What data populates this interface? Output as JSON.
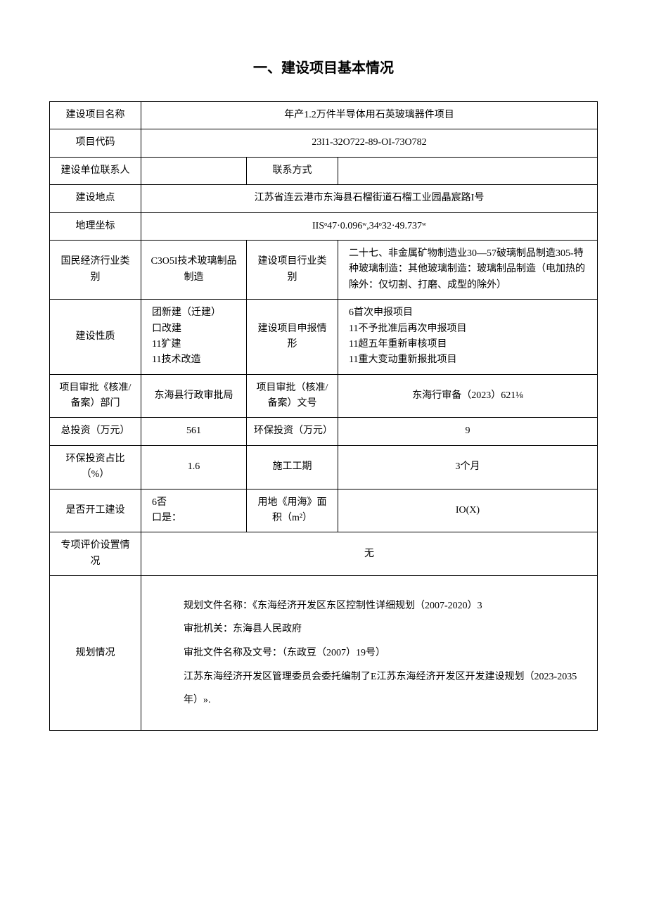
{
  "title": "一、建设项目基本情况",
  "rows": {
    "projectName": {
      "label": "建设项目名称",
      "value": "年产1.2万件半导体用石英玻璃器件项目"
    },
    "projectCode": {
      "label": "项目代码",
      "value": "23I1-32O722-89-OI-73O782"
    },
    "contactPerson": {
      "label": "建设单位联系人",
      "value": ""
    },
    "contactMethod": {
      "label": "联系方式",
      "value": ""
    },
    "address": {
      "label": "建设地点",
      "value": "江苏省连云港市东海县石榴街道石榴工业园晶宸路I号"
    },
    "coordinates": {
      "label": "地理坐标",
      "value": "IISᵒ47·0.096ʷ,34ᵒ32·49.737ʷ"
    },
    "industryCategory": {
      "label": "国民经济行业类别",
      "value": "C3O5I技术玻璃制品制造"
    },
    "projectIndustry": {
      "label": "建设项目行业类别",
      "value": "二十七、非金属矿物制造业30—57破璃制品制造305-特种玻璃制造：其他玻璃制造：玻璃制品制造（电加热的除外：仅切割、打磨、成型的除外）"
    },
    "constructionNature": {
      "label": "建设性质",
      "value": "团新建（迁建）\n口改建\n11犷建\n11技术改造"
    },
    "applicationStatus": {
      "label": "建设项目申报情形",
      "value": "6首次申报项目\n11不予批准后再次申报项目\n11超五年重新审核项目\n11重大变动重新报批项目"
    },
    "approvalDept": {
      "label": "项目审批《核准/备案）部门",
      "value": "东海县行政审批局"
    },
    "approvalNo": {
      "label": "项目审批（核准/备案）文号",
      "value": "东海行审备（2023）621⅛"
    },
    "totalInvestment": {
      "label": "总投资（万元）",
      "value": "561"
    },
    "envInvestment": {
      "label": "环保投资（万元）",
      "value": "9"
    },
    "envRatio": {
      "label": "环保投资占比（%）",
      "value": "1.6"
    },
    "constructionPeriod": {
      "label": "施工工期",
      "value": "3个月"
    },
    "isStarted": {
      "label": "是否开工建设",
      "value": "6否\n口是："
    },
    "landArea": {
      "label": "用地《用海》面积（m²）",
      "value": "IO(X)"
    },
    "specialEval": {
      "label": "专项评价设置情况",
      "value": "无"
    },
    "planning": {
      "label": "规划情况",
      "lines": [
        "规划文件名称：《东海经济开发区东区控制性详细规划（2007-2020）3",
        "审批机关：东海县人民政府",
        "审批文件名称及文号：（东政豆（2007）19号）",
        "江苏东海经济开发区管理委员会委托编制了E江苏东海经济开发区开发建设规划（2023-2035年）»."
      ]
    }
  },
  "colors": {
    "border": "#000000",
    "text": "#000000",
    "background": "#ffffff"
  }
}
